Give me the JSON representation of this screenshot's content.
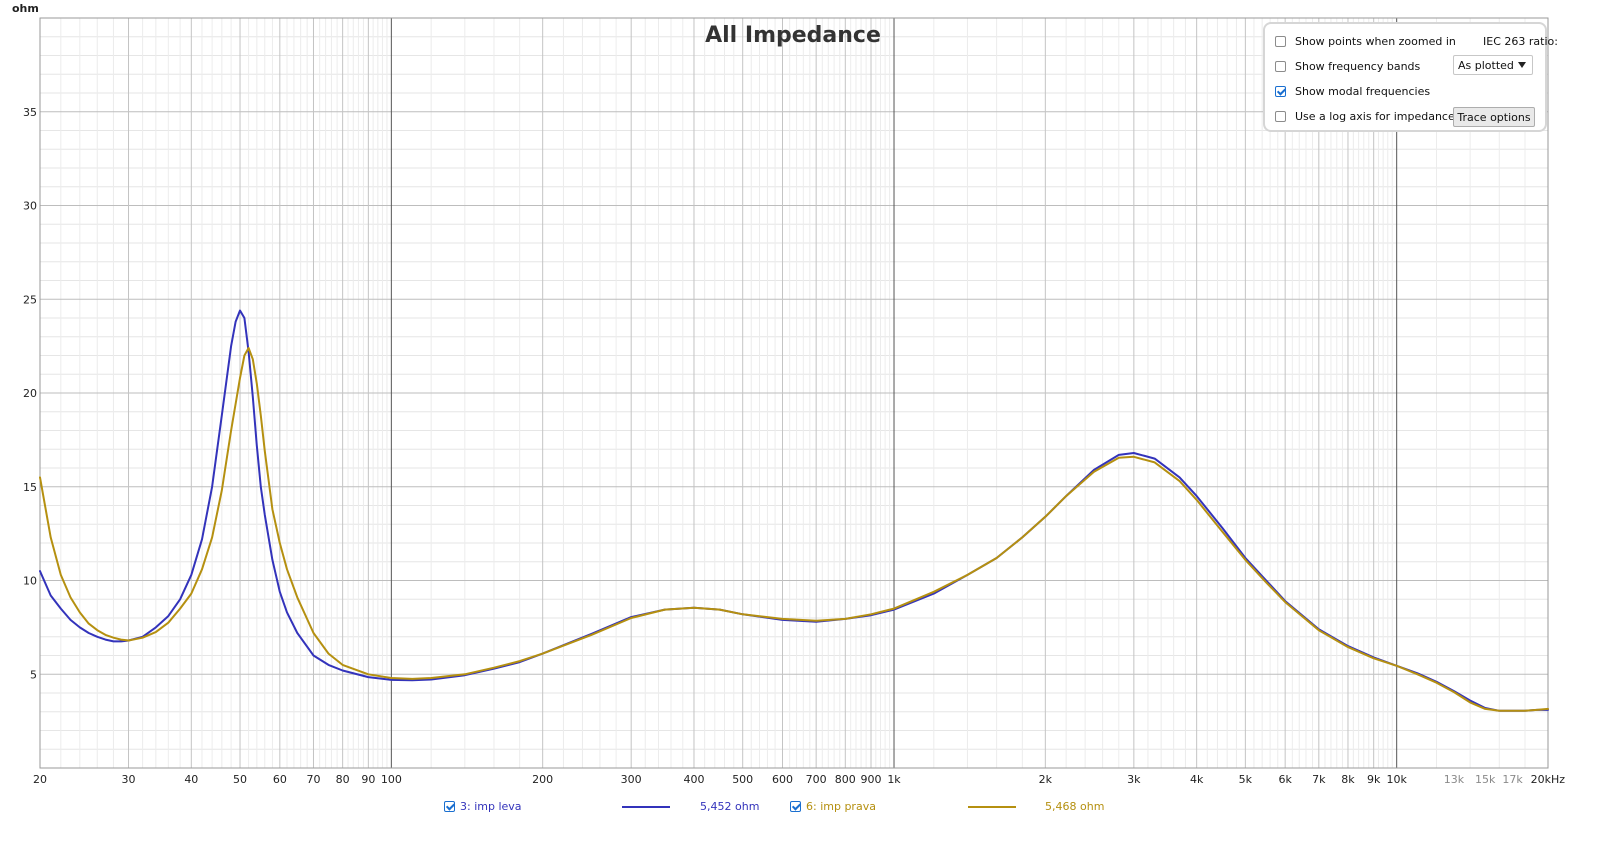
{
  "chart_data": {
    "type": "line",
    "title": "All Impedance",
    "ylabel": "ohm",
    "xscale": "log",
    "xlim": [
      20,
      20000
    ],
    "ylim": [
      0,
      40
    ],
    "grid": true,
    "y_ticks": [
      {
        "value": 5,
        "label": "5"
      },
      {
        "value": 10,
        "label": "10"
      },
      {
        "value": 15,
        "label": "15"
      },
      {
        "value": 20,
        "label": "20"
      },
      {
        "value": 25,
        "label": "25"
      },
      {
        "value": 30,
        "label": "30"
      },
      {
        "value": 35,
        "label": "35"
      }
    ],
    "x_ticks": [
      {
        "value": 20,
        "label": "20"
      },
      {
        "value": 30,
        "label": "30"
      },
      {
        "value": 40,
        "label": "40"
      },
      {
        "value": 50,
        "label": "50"
      },
      {
        "value": 60,
        "label": "60"
      },
      {
        "value": 70,
        "label": "70"
      },
      {
        "value": 80,
        "label": "80"
      },
      {
        "value": 90,
        "label": "90"
      },
      {
        "value": 100,
        "label": "100"
      },
      {
        "value": 200,
        "label": "200"
      },
      {
        "value": 300,
        "label": "300"
      },
      {
        "value": 400,
        "label": "400"
      },
      {
        "value": 500,
        "label": "500"
      },
      {
        "value": 600,
        "label": "600"
      },
      {
        "value": 700,
        "label": "700"
      },
      {
        "value": 800,
        "label": "800"
      },
      {
        "value": 900,
        "label": "900"
      },
      {
        "value": 1000,
        "label": "1k"
      },
      {
        "value": 2000,
        "label": "2k"
      },
      {
        "value": 3000,
        "label": "3k"
      },
      {
        "value": 4000,
        "label": "4k"
      },
      {
        "value": 5000,
        "label": "5k"
      },
      {
        "value": 6000,
        "label": "6k"
      },
      {
        "value": 7000,
        "label": "7k"
      },
      {
        "value": 8000,
        "label": "8k"
      },
      {
        "value": 9000,
        "label": "9k"
      },
      {
        "value": 10000,
        "label": "10k"
      },
      {
        "value": 13000,
        "label": "13k",
        "minor": true
      },
      {
        "value": 15000,
        "label": "15k",
        "minor": true
      },
      {
        "value": 17000,
        "label": "17k",
        "minor": true
      },
      {
        "value": 20000,
        "label": "20kHz"
      }
    ],
    "series": [
      {
        "name": "3: imp leva",
        "value_label": "5,452 ohm",
        "color": "#3333bb",
        "points": [
          [
            20,
            10.5
          ],
          [
            21,
            9.2
          ],
          [
            22,
            8.5
          ],
          [
            23,
            7.9
          ],
          [
            24,
            7.5
          ],
          [
            25,
            7.2
          ],
          [
            26,
            7.0
          ],
          [
            27,
            6.85
          ],
          [
            28,
            6.75
          ],
          [
            29,
            6.75
          ],
          [
            30,
            6.8
          ],
          [
            32,
            7.0
          ],
          [
            34,
            7.5
          ],
          [
            36,
            8.1
          ],
          [
            38,
            9.0
          ],
          [
            40,
            10.3
          ],
          [
            42,
            12.2
          ],
          [
            44,
            15.0
          ],
          [
            46,
            18.8
          ],
          [
            48,
            22.5
          ],
          [
            49,
            23.8
          ],
          [
            50,
            24.4
          ],
          [
            51,
            24.0
          ],
          [
            52,
            22.2
          ],
          [
            53,
            19.8
          ],
          [
            54,
            17.2
          ],
          [
            55,
            15.0
          ],
          [
            56,
            13.5
          ],
          [
            58,
            11.1
          ],
          [
            60,
            9.4
          ],
          [
            62,
            8.3
          ],
          [
            65,
            7.2
          ],
          [
            70,
            6.0
          ],
          [
            75,
            5.5
          ],
          [
            80,
            5.2
          ],
          [
            90,
            4.85
          ],
          [
            100,
            4.7
          ],
          [
            110,
            4.68
          ],
          [
            120,
            4.72
          ],
          [
            140,
            4.95
          ],
          [
            160,
            5.3
          ],
          [
            180,
            5.65
          ],
          [
            200,
            6.1
          ],
          [
            250,
            7.15
          ],
          [
            300,
            8.05
          ],
          [
            350,
            8.45
          ],
          [
            400,
            8.55
          ],
          [
            450,
            8.45
          ],
          [
            500,
            8.2
          ],
          [
            600,
            7.9
          ],
          [
            700,
            7.8
          ],
          [
            800,
            7.95
          ],
          [
            900,
            8.15
          ],
          [
            1000,
            8.45
          ],
          [
            1200,
            9.3
          ],
          [
            1400,
            10.3
          ],
          [
            1600,
            11.2
          ],
          [
            1800,
            12.3
          ],
          [
            2000,
            13.4
          ],
          [
            2200,
            14.5
          ],
          [
            2500,
            15.9
          ],
          [
            2800,
            16.7
          ],
          [
            3000,
            16.8
          ],
          [
            3300,
            16.5
          ],
          [
            3700,
            15.5
          ],
          [
            4000,
            14.5
          ],
          [
            4500,
            12.8
          ],
          [
            5000,
            11.2
          ],
          [
            5500,
            10.0
          ],
          [
            6000,
            8.9
          ],
          [
            7000,
            7.4
          ],
          [
            8000,
            6.5
          ],
          [
            9000,
            5.9
          ],
          [
            10000,
            5.45
          ],
          [
            11000,
            5.05
          ],
          [
            12000,
            4.6
          ],
          [
            13000,
            4.1
          ],
          [
            14000,
            3.6
          ],
          [
            15000,
            3.2
          ],
          [
            16000,
            3.05
          ],
          [
            17000,
            3.05
          ],
          [
            18000,
            3.05
          ],
          [
            19000,
            3.1
          ],
          [
            20000,
            3.1
          ]
        ]
      },
      {
        "name": "6: imp prava",
        "value_label": "5,468 ohm",
        "color": "#b59010",
        "points": [
          [
            20,
            15.5
          ],
          [
            21,
            12.3
          ],
          [
            22,
            10.3
          ],
          [
            23,
            9.1
          ],
          [
            24,
            8.3
          ],
          [
            25,
            7.7
          ],
          [
            26,
            7.35
          ],
          [
            27,
            7.1
          ],
          [
            28,
            6.95
          ],
          [
            29,
            6.85
          ],
          [
            30,
            6.8
          ],
          [
            32,
            6.95
          ],
          [
            34,
            7.25
          ],
          [
            36,
            7.75
          ],
          [
            38,
            8.5
          ],
          [
            40,
            9.3
          ],
          [
            42,
            10.6
          ],
          [
            44,
            12.3
          ],
          [
            46,
            14.8
          ],
          [
            48,
            18.0
          ],
          [
            50,
            20.8
          ],
          [
            51,
            22.0
          ],
          [
            52,
            22.4
          ],
          [
            53,
            21.8
          ],
          [
            54,
            20.5
          ],
          [
            55,
            18.8
          ],
          [
            56,
            16.9
          ],
          [
            58,
            13.8
          ],
          [
            60,
            12.0
          ],
          [
            62,
            10.6
          ],
          [
            65,
            9.1
          ],
          [
            70,
            7.2
          ],
          [
            75,
            6.1
          ],
          [
            80,
            5.5
          ],
          [
            90,
            5.0
          ],
          [
            100,
            4.8
          ],
          [
            110,
            4.75
          ],
          [
            120,
            4.8
          ],
          [
            140,
            5.0
          ],
          [
            160,
            5.35
          ],
          [
            180,
            5.7
          ],
          [
            200,
            6.1
          ],
          [
            250,
            7.1
          ],
          [
            300,
            8.0
          ],
          [
            350,
            8.45
          ],
          [
            400,
            8.55
          ],
          [
            450,
            8.45
          ],
          [
            500,
            8.2
          ],
          [
            600,
            7.95
          ],
          [
            700,
            7.85
          ],
          [
            800,
            7.95
          ],
          [
            900,
            8.2
          ],
          [
            1000,
            8.5
          ],
          [
            1200,
            9.4
          ],
          [
            1400,
            10.3
          ],
          [
            1600,
            11.2
          ],
          [
            1800,
            12.3
          ],
          [
            2000,
            13.4
          ],
          [
            2200,
            14.5
          ],
          [
            2500,
            15.8
          ],
          [
            2800,
            16.55
          ],
          [
            3000,
            16.6
          ],
          [
            3300,
            16.3
          ],
          [
            3700,
            15.3
          ],
          [
            4000,
            14.3
          ],
          [
            4500,
            12.6
          ],
          [
            5000,
            11.1
          ],
          [
            5500,
            9.9
          ],
          [
            6000,
            8.85
          ],
          [
            7000,
            7.35
          ],
          [
            8000,
            6.45
          ],
          [
            9000,
            5.85
          ],
          [
            10000,
            5.45
          ],
          [
            11000,
            5.0
          ],
          [
            12000,
            4.55
          ],
          [
            13000,
            4.05
          ],
          [
            14000,
            3.5
          ],
          [
            15000,
            3.15
          ],
          [
            16000,
            3.05
          ],
          [
            17000,
            3.05
          ],
          [
            18000,
            3.05
          ],
          [
            19000,
            3.1
          ],
          [
            20000,
            3.15
          ]
        ]
      }
    ]
  },
  "options_panel": {
    "show_points": {
      "label": "Show points when zoomed in",
      "checked": false
    },
    "show_bands": {
      "label": "Show frequency bands",
      "checked": false
    },
    "show_modal": {
      "label": "Show modal frequencies",
      "checked": true
    },
    "log_axis": {
      "label": "Use a log axis for impedance",
      "checked": false
    },
    "iec_label": "IEC 263 ratio:",
    "iec_value": "As plotted",
    "trace_options_label": "Trace options"
  },
  "legend": [
    {
      "name": "3: imp leva",
      "value": "5,452 ohm",
      "checked": true,
      "color": "#3333bb"
    },
    {
      "name": "6: imp prava",
      "value": "5,468 ohm",
      "checked": true,
      "color": "#b59010"
    }
  ]
}
